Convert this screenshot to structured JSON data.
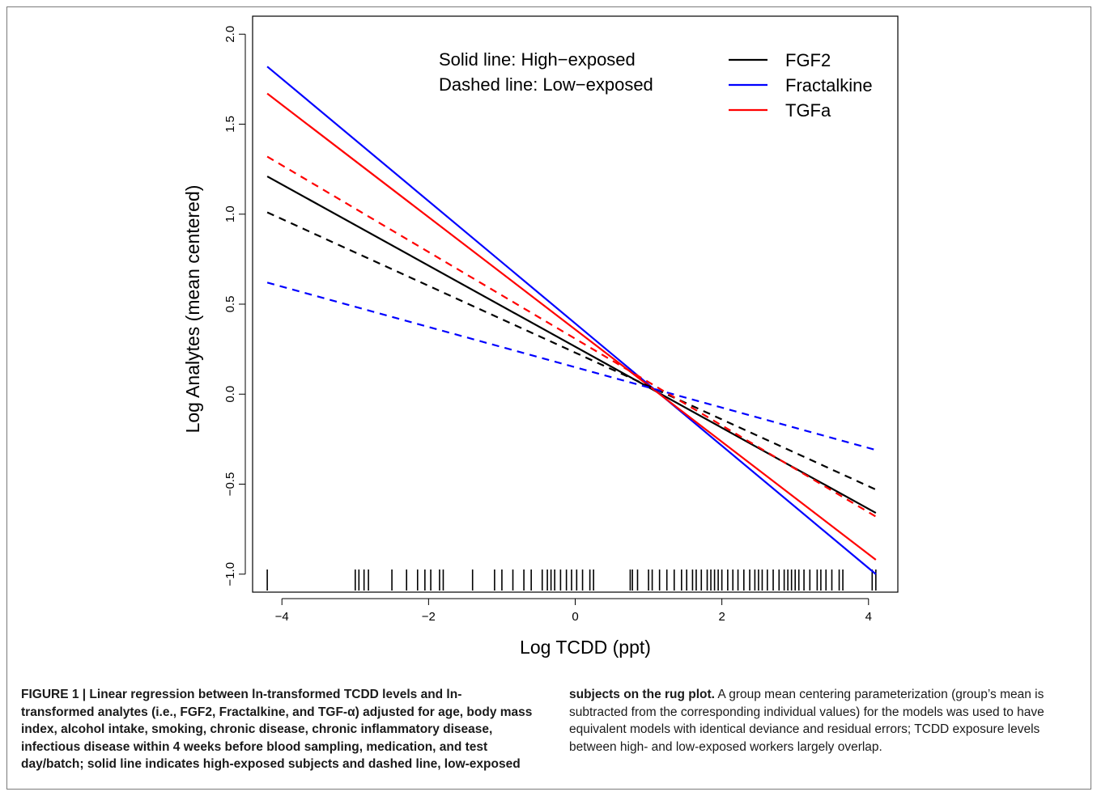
{
  "chart_data": {
    "type": "line",
    "xlabel": "Log TCDD (ppt)",
    "ylabel": "Log Analytes (mean centered)",
    "xlim": [
      -4.4,
      4.4
    ],
    "ylim": [
      -1.1,
      2.1
    ],
    "x_ticks": [
      -4,
      -2,
      0,
      2,
      4
    ],
    "x_tick_labels": [
      "−4",
      "−2",
      "0",
      "2",
      "4"
    ],
    "y_ticks": [
      -1.0,
      -0.5,
      0.0,
      0.5,
      1.0,
      1.5,
      2.0
    ],
    "y_tick_labels": [
      "−1.0",
      "−0.5",
      "0.0",
      "0.5",
      "1.0",
      "1.5",
      "2.0"
    ],
    "annotations": [
      "Solid line: High−exposed",
      "Dashed line: Low−exposed"
    ],
    "legend": {
      "placement": "top-right",
      "entries": [
        {
          "label": "FGF2",
          "color": "#000000"
        },
        {
          "label": "Fractalkine",
          "color": "#0000ff"
        },
        {
          "label": "TGFa",
          "color": "#ff0000"
        }
      ]
    },
    "series": [
      {
        "name": "FGF2",
        "color": "#000000",
        "style": "solid",
        "x": [
          -4.2,
          4.1
        ],
        "y": [
          1.21,
          -0.66
        ]
      },
      {
        "name": "Fractalkine",
        "color": "#0000ff",
        "style": "solid",
        "x": [
          -4.2,
          4.1
        ],
        "y": [
          1.82,
          -1.0
        ]
      },
      {
        "name": "TGFa",
        "color": "#ff0000",
        "style": "solid",
        "x": [
          -4.2,
          4.1
        ],
        "y": [
          1.67,
          -0.92
        ]
      },
      {
        "name": "FGF2",
        "color": "#000000",
        "style": "dashed",
        "x": [
          -4.2,
          4.1
        ],
        "y": [
          1.01,
          -0.53
        ]
      },
      {
        "name": "Fractalkine",
        "color": "#0000ff",
        "style": "dashed",
        "x": [
          -4.2,
          4.1
        ],
        "y": [
          0.62,
          -0.31
        ]
      },
      {
        "name": "TGFa",
        "color": "#ff0000",
        "style": "dashed",
        "x": [
          -4.2,
          4.1
        ],
        "y": [
          1.32,
          -0.68
        ]
      }
    ],
    "rug": [
      -4.2,
      -3.0,
      -2.95,
      -2.88,
      -2.82,
      -2.5,
      -2.3,
      -2.15,
      -2.05,
      -1.97,
      -1.8,
      -1.85,
      -1.4,
      -1.1,
      -1.0,
      -0.85,
      -0.7,
      -0.6,
      -0.45,
      -0.38,
      -0.33,
      -0.28,
      -0.2,
      -0.12,
      -0.05,
      0.02,
      0.1,
      0.2,
      0.25,
      0.75,
      0.78,
      0.85,
      1.0,
      1.05,
      1.15,
      1.25,
      1.35,
      1.45,
      1.52,
      1.6,
      1.65,
      1.72,
      1.8,
      1.85,
      1.9,
      1.95,
      2.0,
      2.08,
      2.15,
      2.22,
      2.3,
      2.38,
      2.45,
      2.5,
      2.55,
      2.62,
      2.7,
      2.78,
      2.85,
      2.9,
      2.95,
      3.0,
      3.05,
      3.12,
      3.2,
      3.3,
      3.35,
      3.42,
      3.5,
      3.6,
      3.65,
      4.05,
      4.1
    ]
  },
  "caption": {
    "bold": "FIGURE 1 | Linear regression between ln-transformed TCDD levels and ln-transformed analytes (i.e., FGF2, Fractalkine, and TGF-α) adjusted for age, body mass index, alcohol intake, smoking, chronic disease, chronic inflammatory disease, infectious disease within 4 weeks before blood sampling, medication, and test day/batch; solid line indicates high-exposed subjects and dashed line, low-exposed subjects on the rug plot.",
    "text": " A group mean centering parameterization (group’s mean is subtracted from the corresponding individual values) for the models was used to have equivalent models with identical deviance and residual errors; TCDD exposure levels between high- and low-exposed workers largely overlap."
  }
}
